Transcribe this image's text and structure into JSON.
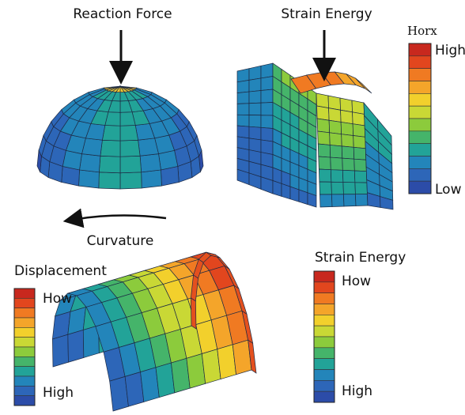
{
  "top_left": {
    "title": "Reaction Force",
    "caption": "Curvature"
  },
  "top_right": {
    "title": "Strain Energy",
    "legend": {
      "title": "Horx",
      "top": "High",
      "bottom": "Low"
    }
  },
  "bottom_left": {
    "legend": {
      "title": "Displacement",
      "top": "How",
      "bottom": "High"
    }
  },
  "bottom_right": {
    "legend": {
      "title": "Strain Energy",
      "top": "How",
      "bottom": "High"
    }
  }
}
